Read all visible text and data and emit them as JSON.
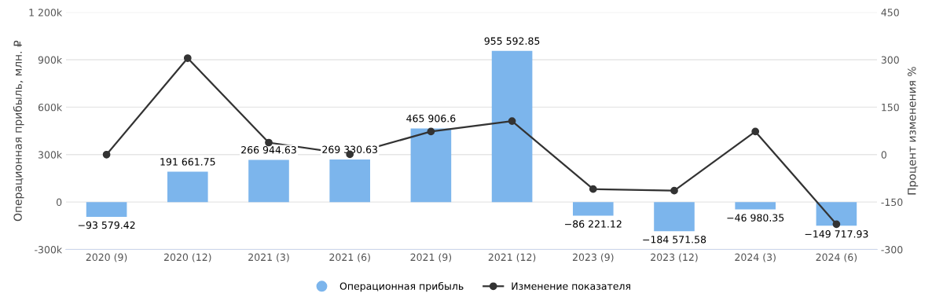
{
  "chart_data": {
    "type": "bar",
    "categories": [
      "2020 (9)",
      "2020 (12)",
      "2021 (3)",
      "2021 (6)",
      "2021 (9)",
      "2021 (12)",
      "2023 (9)",
      "2023 (12)",
      "2024 (3)",
      "2024 (6)"
    ],
    "ylabel": "Операционная прибыль, млн. ₽",
    "y2label": "Процент изменения %",
    "series": [
      {
        "name": "Операционная прибыль",
        "color": "#7cb5ec",
        "values": [
          -93579.42,
          191661.75,
          266944.63,
          269330.63,
          465906.6,
          955592.85,
          -86221.12,
          -184571.58,
          -46980.35,
          -149717.93
        ],
        "value_labels": [
          "−93 579.42",
          "191 661.75",
          "266 944.63",
          "269 330.63",
          "465 906.6",
          "955 592.85",
          "−86 221.12",
          "−184 571.58",
          "−46 980.35",
          "−149 717.93"
        ]
      },
      {
        "name": "Изменение показателя",
        "type": "line",
        "axis": "y2",
        "color": "#333333",
        "marker": "circle",
        "values": [
          0,
          305,
          38,
          1,
          73,
          106,
          -109,
          -114,
          73,
          -220
        ]
      }
    ],
    "ylim": [
      -300000,
      1200000
    ],
    "yticks": [
      {
        "value": -300000,
        "label": "-300k"
      },
      {
        "value": 0,
        "label": "0"
      },
      {
        "value": 300000,
        "label": "300k"
      },
      {
        "value": 600000,
        "label": "600k"
      },
      {
        "value": 900000,
        "label": "900k"
      },
      {
        "value": 1200000,
        "label": "1 200k"
      }
    ],
    "y2lim": [
      -300,
      450
    ],
    "y2ticks": [
      -300,
      -150,
      0,
      150,
      300,
      450
    ],
    "grid": "y",
    "legend": "bottom"
  }
}
